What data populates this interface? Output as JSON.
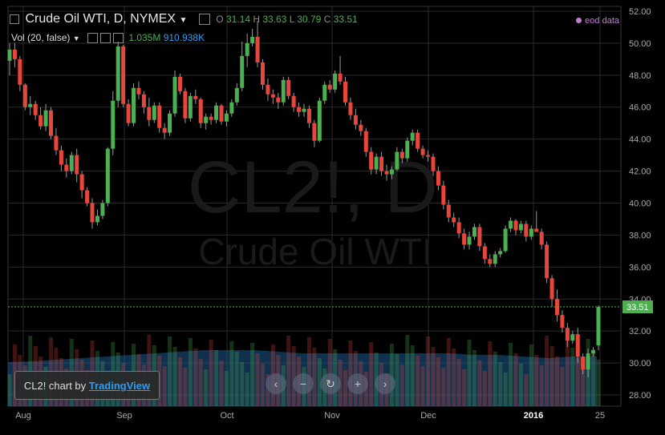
{
  "header": {
    "symbol_title": "Crude Oil WTI, D, NYMEX",
    "o_label": "O",
    "o_value": "31.14",
    "h_label": "H",
    "h_value": "33.63",
    "l_label": "L",
    "l_value": "30.79",
    "c_label": "C",
    "c_value": "33.51",
    "vol_label": "Vol (20, false)",
    "vol_value": "1.035M",
    "vol_ma_value": "910.938K",
    "eod_label": "eod data"
  },
  "watermark": {
    "symbol": "CL2!, D",
    "name": "Crude Oil WTI"
  },
  "badge": {
    "prefix": "CL2! chart by",
    "link": "TradingView"
  },
  "nav_buttons": [
    "‹",
    "−",
    "↻",
    "+",
    "›"
  ],
  "colors": {
    "up": "#4caf50",
    "down": "#e8463a",
    "grid": "#2a2a2a",
    "volume_ma": "#1e5a8c",
    "price_line": "#4caf50"
  },
  "chart_data": {
    "type": "candlestick",
    "y_ticks": [
      "52.00",
      "50.00",
      "48.00",
      "46.00",
      "44.00",
      "42.00",
      "40.00",
      "38.00",
      "36.00",
      "34.00",
      "32.00",
      "30.00",
      "28.00"
    ],
    "ylim": [
      27.5,
      52.5
    ],
    "x_ticks": [
      "Aug",
      "Sep",
      "Oct",
      "Nov",
      "Dec",
      "2016",
      "25"
    ],
    "last_price": "33.51",
    "candles": [
      [
        48.9,
        50.0,
        48.0,
        49.6
      ],
      [
        49.6,
        50.0,
        48.5,
        49.0
      ],
      [
        49.0,
        49.2,
        47.0,
        47.4
      ],
      [
        47.4,
        47.5,
        45.8,
        46.0
      ],
      [
        46.0,
        46.7,
        45.5,
        46.2
      ],
      [
        46.2,
        46.4,
        45.2,
        45.5
      ],
      [
        45.5,
        46.0,
        44.6,
        44.8
      ],
      [
        44.8,
        46.2,
        44.5,
        45.8
      ],
      [
        45.8,
        46.0,
        44.0,
        44.2
      ],
      [
        44.2,
        44.7,
        43.0,
        43.3
      ],
      [
        43.3,
        43.6,
        42.0,
        42.4
      ],
      [
        42.4,
        42.8,
        41.6,
        42.0
      ],
      [
        42.0,
        43.2,
        41.8,
        43.0
      ],
      [
        43.0,
        43.4,
        41.3,
        41.8
      ],
      [
        41.8,
        42.0,
        40.3,
        40.8
      ],
      [
        40.8,
        41.0,
        39.8,
        40.0
      ],
      [
        40.0,
        40.3,
        38.4,
        38.8
      ],
      [
        38.8,
        39.6,
        38.6,
        39.2
      ],
      [
        39.2,
        40.2,
        39.0,
        40.0
      ],
      [
        40.0,
        43.5,
        39.8,
        43.4
      ],
      [
        43.4,
        47.0,
        43.0,
        46.4
      ],
      [
        46.4,
        50.1,
        46.0,
        49.8
      ],
      [
        49.8,
        49.9,
        46.0,
        46.2
      ],
      [
        46.2,
        46.5,
        44.8,
        45.0
      ],
      [
        45.0,
        47.5,
        44.8,
        47.2
      ],
      [
        47.2,
        47.6,
        46.5,
        46.8
      ],
      [
        46.8,
        47.0,
        45.6,
        46.0
      ],
      [
        46.0,
        46.6,
        44.8,
        45.2
      ],
      [
        45.2,
        46.3,
        45.0,
        46.1
      ],
      [
        46.1,
        46.3,
        44.4,
        44.7
      ],
      [
        44.7,
        45.0,
        44.0,
        44.4
      ],
      [
        44.4,
        45.8,
        44.2,
        45.6
      ],
      [
        45.6,
        48.3,
        45.4,
        47.9
      ],
      [
        47.9,
        48.1,
        46.8,
        47.0
      ],
      [
        47.0,
        47.2,
        45.0,
        45.3
      ],
      [
        45.3,
        46.9,
        45.1,
        46.7
      ],
      [
        46.7,
        47.1,
        46.2,
        46.5
      ],
      [
        46.5,
        46.6,
        44.7,
        45.0
      ],
      [
        45.0,
        45.6,
        44.6,
        45.4
      ],
      [
        45.4,
        45.6,
        44.9,
        45.2
      ],
      [
        45.2,
        46.3,
        45.0,
        46.1
      ],
      [
        46.1,
        46.2,
        44.9,
        45.1
      ],
      [
        45.1,
        45.8,
        44.8,
        45.6
      ],
      [
        45.6,
        46.5,
        45.4,
        46.3
      ],
      [
        46.3,
        47.5,
        46.1,
        47.2
      ],
      [
        47.2,
        50.1,
        47.0,
        49.2
      ],
      [
        49.2,
        50.6,
        48.5,
        50.0
      ],
      [
        50.0,
        50.9,
        49.8,
        50.4
      ],
      [
        50.4,
        51.4,
        48.5,
        48.8
      ],
      [
        48.8,
        49.0,
        47.1,
        47.4
      ],
      [
        47.4,
        47.8,
        46.4,
        46.8
      ],
      [
        46.8,
        47.1,
        46.2,
        46.6
      ],
      [
        46.6,
        46.9,
        45.9,
        46.3
      ],
      [
        46.3,
        47.9,
        46.1,
        47.7
      ],
      [
        47.7,
        47.9,
        46.5,
        46.7
      ],
      [
        46.7,
        46.9,
        45.7,
        46.0
      ],
      [
        46.0,
        46.3,
        45.4,
        45.7
      ],
      [
        45.7,
        46.2,
        45.4,
        45.9
      ],
      [
        45.9,
        46.1,
        44.7,
        45.0
      ],
      [
        45.0,
        45.2,
        43.5,
        43.9
      ],
      [
        43.9,
        46.6,
        43.8,
        46.4
      ],
      [
        46.4,
        47.6,
        46.2,
        47.4
      ],
      [
        47.4,
        47.7,
        46.9,
        47.1
      ],
      [
        47.1,
        48.3,
        46.9,
        48.1
      ],
      [
        48.1,
        49.2,
        47.4,
        47.6
      ],
      [
        47.6,
        47.9,
        46.1,
        46.3
      ],
      [
        46.3,
        46.6,
        45.2,
        45.5
      ],
      [
        45.5,
        45.9,
        44.6,
        44.9
      ],
      [
        44.9,
        45.2,
        44.2,
        44.5
      ],
      [
        44.5,
        44.7,
        42.9,
        43.2
      ],
      [
        43.2,
        43.5,
        41.8,
        42.1
      ],
      [
        42.1,
        43.1,
        41.8,
        42.9
      ],
      [
        42.9,
        43.2,
        41.7,
        42.0
      ],
      [
        42.0,
        42.4,
        41.4,
        41.8
      ],
      [
        41.8,
        42.3,
        41.5,
        42.1
      ],
      [
        42.1,
        43.5,
        42.0,
        43.2
      ],
      [
        43.2,
        43.4,
        42.5,
        42.8
      ],
      [
        42.8,
        44.1,
        42.6,
        43.9
      ],
      [
        43.9,
        44.6,
        43.6,
        44.4
      ],
      [
        44.4,
        44.6,
        43.2,
        43.4
      ],
      [
        43.4,
        43.6,
        42.8,
        43.0
      ],
      [
        43.0,
        43.3,
        42.6,
        42.9
      ],
      [
        42.9,
        43.1,
        41.7,
        42.0
      ],
      [
        42.0,
        42.3,
        40.8,
        41.1
      ],
      [
        41.1,
        41.4,
        39.6,
        39.9
      ],
      [
        39.9,
        40.2,
        38.8,
        39.1
      ],
      [
        39.1,
        39.4,
        38.5,
        38.8
      ],
      [
        38.8,
        39.1,
        37.8,
        38.1
      ],
      [
        38.1,
        38.4,
        37.1,
        37.4
      ],
      [
        37.4,
        38.2,
        37.1,
        37.9
      ],
      [
        37.9,
        38.7,
        37.7,
        38.5
      ],
      [
        38.5,
        38.7,
        37.0,
        37.3
      ],
      [
        37.3,
        37.5,
        36.2,
        36.5
      ],
      [
        36.5,
        36.8,
        36.0,
        36.2
      ],
      [
        36.2,
        37.0,
        36.0,
        36.8
      ],
      [
        36.8,
        37.2,
        36.6,
        37.0
      ],
      [
        37.0,
        38.6,
        36.9,
        38.4
      ],
      [
        38.4,
        39.1,
        38.2,
        38.9
      ],
      [
        38.9,
        39.0,
        38.0,
        38.3
      ],
      [
        38.3,
        38.9,
        38.1,
        38.7
      ],
      [
        38.7,
        38.9,
        37.6,
        37.9
      ],
      [
        37.9,
        38.6,
        37.7,
        38.4
      ],
      [
        38.4,
        39.5,
        38.2,
        38.2
      ],
      [
        38.2,
        38.4,
        37.1,
        37.4
      ],
      [
        37.4,
        37.6,
        35.0,
        35.3
      ],
      [
        35.3,
        35.5,
        33.5,
        34.0
      ],
      [
        34.0,
        34.6,
        32.6,
        33.0
      ],
      [
        33.0,
        33.3,
        31.9,
        32.2
      ],
      [
        32.2,
        32.5,
        31.0,
        31.4
      ],
      [
        31.4,
        32.0,
        31.2,
        31.8
      ],
      [
        31.8,
        32.2,
        30.0,
        30.4
      ],
      [
        30.4,
        30.6,
        29.3,
        29.6
      ],
      [
        29.6,
        30.9,
        29.1,
        30.6
      ],
      [
        30.6,
        31.0,
        30.4,
        30.8
      ],
      [
        31.1,
        33.6,
        30.8,
        33.5
      ]
    ],
    "volume_ma": [
      0.55,
      0.56,
      0.58,
      0.6,
      0.62,
      0.64,
      0.66,
      0.68,
      0.7,
      0.7,
      0.7,
      0.68,
      0.66,
      0.66,
      0.66,
      0.66,
      0.66,
      0.66,
      0.66,
      0.64,
      0.64,
      0.62,
      0.6,
      0.62,
      0.62
    ]
  }
}
